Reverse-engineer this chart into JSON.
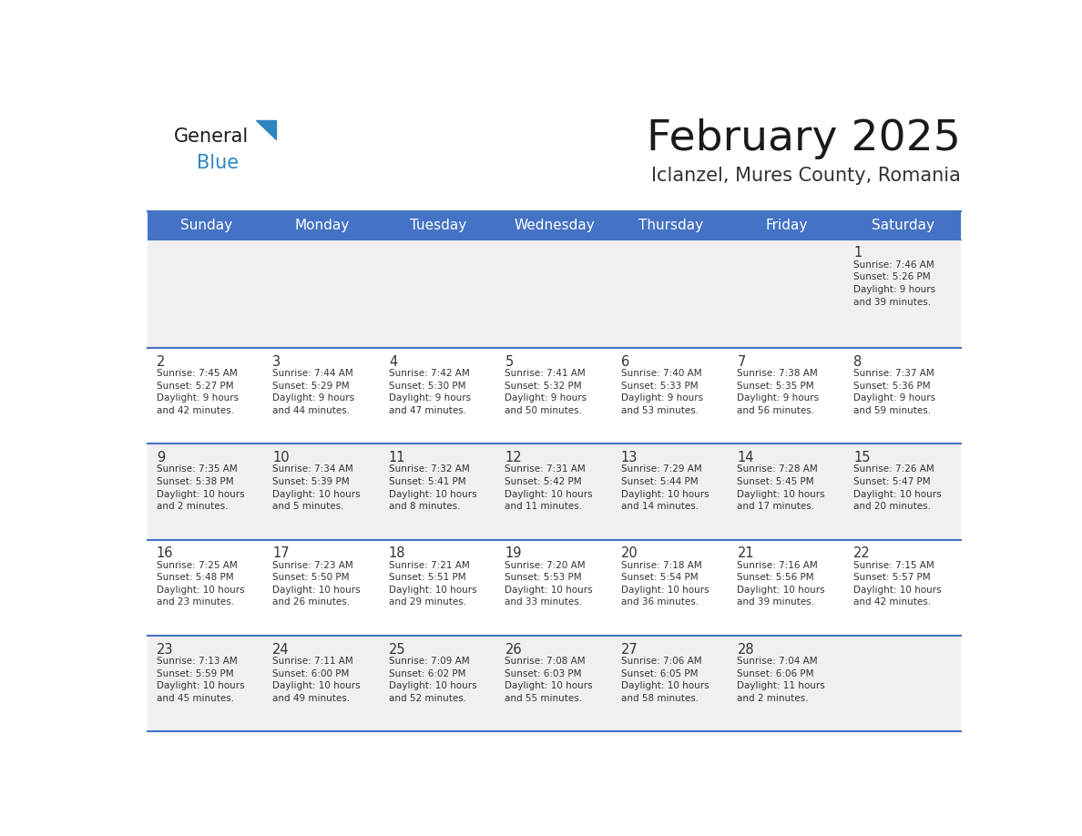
{
  "title": "February 2025",
  "subtitle": "Iclanzel, Mures County, Romania",
  "days_of_week": [
    "Sunday",
    "Monday",
    "Tuesday",
    "Wednesday",
    "Thursday",
    "Friday",
    "Saturday"
  ],
  "header_bg": "#4472C4",
  "header_text": "#FFFFFF",
  "cell_bg_odd": "#F0F0F0",
  "cell_bg_even": "#FFFFFF",
  "border_color": "#4472C4",
  "text_color": "#333333",
  "day_number_color": "#333333",
  "title_color": "#1a1a1a",
  "subtitle_color": "#333333",
  "logo_general_color": "#1a1a1a",
  "logo_blue_color": "#2E86C1",
  "calendar_data": [
    [
      {
        "day": null,
        "info": null
      },
      {
        "day": null,
        "info": null
      },
      {
        "day": null,
        "info": null
      },
      {
        "day": null,
        "info": null
      },
      {
        "day": null,
        "info": null
      },
      {
        "day": null,
        "info": null
      },
      {
        "day": 1,
        "info": "Sunrise: 7:46 AM\nSunset: 5:26 PM\nDaylight: 9 hours\nand 39 minutes."
      }
    ],
    [
      {
        "day": 2,
        "info": "Sunrise: 7:45 AM\nSunset: 5:27 PM\nDaylight: 9 hours\nand 42 minutes."
      },
      {
        "day": 3,
        "info": "Sunrise: 7:44 AM\nSunset: 5:29 PM\nDaylight: 9 hours\nand 44 minutes."
      },
      {
        "day": 4,
        "info": "Sunrise: 7:42 AM\nSunset: 5:30 PM\nDaylight: 9 hours\nand 47 minutes."
      },
      {
        "day": 5,
        "info": "Sunrise: 7:41 AM\nSunset: 5:32 PM\nDaylight: 9 hours\nand 50 minutes."
      },
      {
        "day": 6,
        "info": "Sunrise: 7:40 AM\nSunset: 5:33 PM\nDaylight: 9 hours\nand 53 minutes."
      },
      {
        "day": 7,
        "info": "Sunrise: 7:38 AM\nSunset: 5:35 PM\nDaylight: 9 hours\nand 56 minutes."
      },
      {
        "day": 8,
        "info": "Sunrise: 7:37 AM\nSunset: 5:36 PM\nDaylight: 9 hours\nand 59 minutes."
      }
    ],
    [
      {
        "day": 9,
        "info": "Sunrise: 7:35 AM\nSunset: 5:38 PM\nDaylight: 10 hours\nand 2 minutes."
      },
      {
        "day": 10,
        "info": "Sunrise: 7:34 AM\nSunset: 5:39 PM\nDaylight: 10 hours\nand 5 minutes."
      },
      {
        "day": 11,
        "info": "Sunrise: 7:32 AM\nSunset: 5:41 PM\nDaylight: 10 hours\nand 8 minutes."
      },
      {
        "day": 12,
        "info": "Sunrise: 7:31 AM\nSunset: 5:42 PM\nDaylight: 10 hours\nand 11 minutes."
      },
      {
        "day": 13,
        "info": "Sunrise: 7:29 AM\nSunset: 5:44 PM\nDaylight: 10 hours\nand 14 minutes."
      },
      {
        "day": 14,
        "info": "Sunrise: 7:28 AM\nSunset: 5:45 PM\nDaylight: 10 hours\nand 17 minutes."
      },
      {
        "day": 15,
        "info": "Sunrise: 7:26 AM\nSunset: 5:47 PM\nDaylight: 10 hours\nand 20 minutes."
      }
    ],
    [
      {
        "day": 16,
        "info": "Sunrise: 7:25 AM\nSunset: 5:48 PM\nDaylight: 10 hours\nand 23 minutes."
      },
      {
        "day": 17,
        "info": "Sunrise: 7:23 AM\nSunset: 5:50 PM\nDaylight: 10 hours\nand 26 minutes."
      },
      {
        "day": 18,
        "info": "Sunrise: 7:21 AM\nSunset: 5:51 PM\nDaylight: 10 hours\nand 29 minutes."
      },
      {
        "day": 19,
        "info": "Sunrise: 7:20 AM\nSunset: 5:53 PM\nDaylight: 10 hours\nand 33 minutes."
      },
      {
        "day": 20,
        "info": "Sunrise: 7:18 AM\nSunset: 5:54 PM\nDaylight: 10 hours\nand 36 minutes."
      },
      {
        "day": 21,
        "info": "Sunrise: 7:16 AM\nSunset: 5:56 PM\nDaylight: 10 hours\nand 39 minutes."
      },
      {
        "day": 22,
        "info": "Sunrise: 7:15 AM\nSunset: 5:57 PM\nDaylight: 10 hours\nand 42 minutes."
      }
    ],
    [
      {
        "day": 23,
        "info": "Sunrise: 7:13 AM\nSunset: 5:59 PM\nDaylight: 10 hours\nand 45 minutes."
      },
      {
        "day": 24,
        "info": "Sunrise: 7:11 AM\nSunset: 6:00 PM\nDaylight: 10 hours\nand 49 minutes."
      },
      {
        "day": 25,
        "info": "Sunrise: 7:09 AM\nSunset: 6:02 PM\nDaylight: 10 hours\nand 52 minutes."
      },
      {
        "day": 26,
        "info": "Sunrise: 7:08 AM\nSunset: 6:03 PM\nDaylight: 10 hours\nand 55 minutes."
      },
      {
        "day": 27,
        "info": "Sunrise: 7:06 AM\nSunset: 6:05 PM\nDaylight: 10 hours\nand 58 minutes."
      },
      {
        "day": 28,
        "info": "Sunrise: 7:04 AM\nSunset: 6:06 PM\nDaylight: 11 hours\nand 2 minutes."
      },
      {
        "day": null,
        "info": null
      }
    ]
  ]
}
